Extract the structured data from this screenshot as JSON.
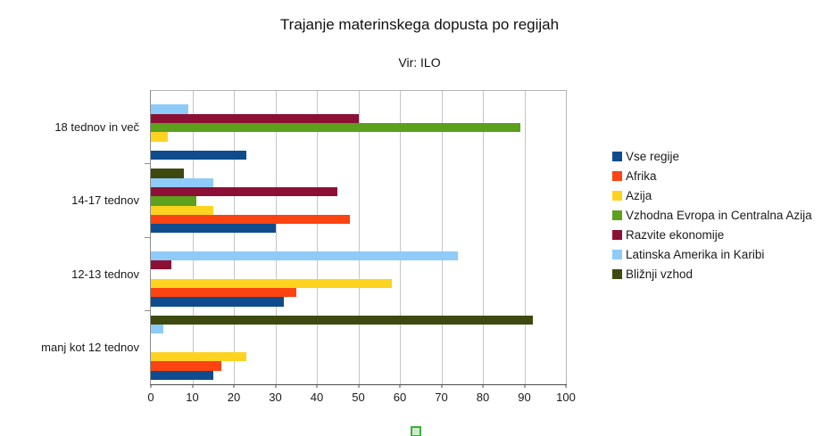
{
  "chart_data": {
    "type": "bar",
    "orientation": "horizontal",
    "title": "Trajanje materinskega dopusta po regijah",
    "subtitle": "Vir: ILO",
    "categories": [
      "18 tednov in več",
      "14-17 tednov",
      "12-13 tednov",
      "manj kot 12 tednov"
    ],
    "series": [
      {
        "name": "Vse regije",
        "color": "#0e4c8d",
        "values": [
          23,
          30,
          32,
          15
        ]
      },
      {
        "name": "Afrika",
        "color": "#fc4312",
        "values": [
          0,
          48,
          35,
          17
        ]
      },
      {
        "name": "Azija",
        "color": "#fdd320",
        "values": [
          4,
          15,
          58,
          23
        ]
      },
      {
        "name": "Vzhodna Evropa in Centralna Azija",
        "color": "#5ca01d",
        "values": [
          89,
          11,
          0,
          0
        ]
      },
      {
        "name": "Razvite ekonomije",
        "color": "#8c1036",
        "values": [
          50,
          45,
          5,
          0
        ]
      },
      {
        "name": "Latinska Amerika in Karibi",
        "color": "#8fcbf8",
        "values": [
          9,
          15,
          74,
          3
        ]
      },
      {
        "name": "Bližnji vzhod",
        "color": "#3d490e",
        "values": [
          0,
          8,
          0,
          92
        ]
      }
    ],
    "series_order_note": "first series drawn at bottom of each category group",
    "xlim": [
      0,
      100
    ],
    "x_ticks": [
      0,
      10,
      20,
      30,
      40,
      50,
      60,
      70,
      80,
      90,
      100
    ],
    "grid": true,
    "legend_position": "right",
    "colors": {
      "gridline": "#c5c5c5",
      "plot_border": "#b3b3b3",
      "x_axis_line": "#4d4d4d",
      "y_axis_line": "#8c8c8c",
      "text": "#1a1a1a"
    }
  }
}
